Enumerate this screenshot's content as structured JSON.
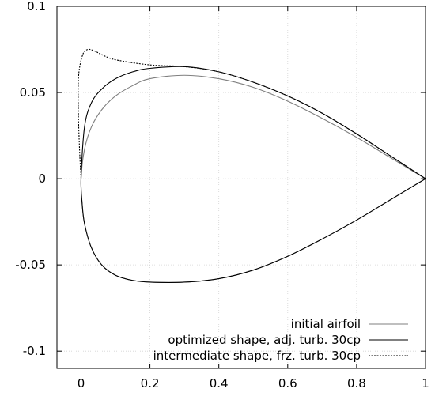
{
  "chart_data": {
    "type": "line",
    "title": "",
    "xlabel": "",
    "ylabel": "",
    "xlim": [
      -0.07,
      1.0
    ],
    "ylim": [
      -0.11,
      0.1
    ],
    "grid": true,
    "legend_position": "bottom-right",
    "x_ticks": [
      {
        "value": 0,
        "label": "0"
      },
      {
        "value": 0.2,
        "label": "0.2"
      },
      {
        "value": 0.4,
        "label": "0.4"
      },
      {
        "value": 0.6,
        "label": "0.6"
      },
      {
        "value": 0.8,
        "label": "0.8"
      },
      {
        "value": 1,
        "label": "1"
      }
    ],
    "y_ticks": [
      {
        "value": -0.1,
        "label": "-0.1"
      },
      {
        "value": -0.05,
        "label": "-0.05"
      },
      {
        "value": 0,
        "label": "0"
      },
      {
        "value": 0.05,
        "label": "0.05"
      },
      {
        "value": 0.1,
        "label": "0.1"
      }
    ],
    "series": [
      {
        "name": "initial airfoil",
        "color": "#7f7f7f",
        "style": "solid",
        "x": [
          1.0,
          0.9,
          0.8,
          0.7,
          0.6,
          0.5,
          0.4,
          0.3,
          0.2,
          0.15,
          0.1,
          0.06,
          0.03,
          0.01,
          0.0,
          0.003,
          0.01,
          0.03,
          0.06,
          0.1,
          0.15,
          0.2,
          0.3,
          0.4,
          0.5,
          0.6,
          0.7,
          0.8,
          0.9,
          1.0
        ],
        "y": [
          0.0,
          0.012,
          0.024,
          0.035,
          0.045,
          0.053,
          0.058,
          0.06,
          0.058,
          0.054,
          0.048,
          0.04,
          0.03,
          0.017,
          0.0,
          -0.014,
          -0.026,
          -0.04,
          -0.05,
          -0.056,
          -0.059,
          -0.06,
          -0.06,
          -0.058,
          -0.053,
          -0.045,
          -0.035,
          -0.024,
          -0.012,
          0.0
        ]
      },
      {
        "name": "optimized shape, adj. turb. 30cp",
        "color": "#000000",
        "style": "solid",
        "x": [
          1.0,
          0.9,
          0.8,
          0.7,
          0.6,
          0.5,
          0.4,
          0.3,
          0.2,
          0.15,
          0.1,
          0.06,
          0.03,
          0.01,
          0.0,
          0.003,
          0.01,
          0.03,
          0.06,
          0.1,
          0.15,
          0.2,
          0.3,
          0.4,
          0.5,
          0.6,
          0.7,
          0.8,
          0.9,
          1.0
        ],
        "y": [
          0.0,
          0.013,
          0.026,
          0.038,
          0.048,
          0.056,
          0.062,
          0.065,
          0.064,
          0.062,
          0.058,
          0.052,
          0.044,
          0.03,
          0.0,
          -0.014,
          -0.026,
          -0.04,
          -0.05,
          -0.056,
          -0.059,
          -0.06,
          -0.06,
          -0.058,
          -0.053,
          -0.045,
          -0.035,
          -0.024,
          -0.012,
          0.0
        ]
      },
      {
        "name": "intermediate shape, frz. turb. 30cp",
        "color": "#000000",
        "style": "dashed",
        "x": [
          1.0,
          0.9,
          0.8,
          0.7,
          0.6,
          0.5,
          0.4,
          0.3,
          0.2,
          0.1,
          0.06,
          0.04,
          0.02,
          0.005,
          -0.007,
          -0.008,
          -0.005,
          -0.002,
          0.0
        ],
        "y": [
          0.0,
          0.013,
          0.026,
          0.038,
          0.048,
          0.056,
          0.062,
          0.065,
          0.066,
          0.069,
          0.072,
          0.074,
          0.075,
          0.072,
          0.06,
          0.04,
          0.02,
          0.007,
          0.0
        ]
      }
    ]
  }
}
